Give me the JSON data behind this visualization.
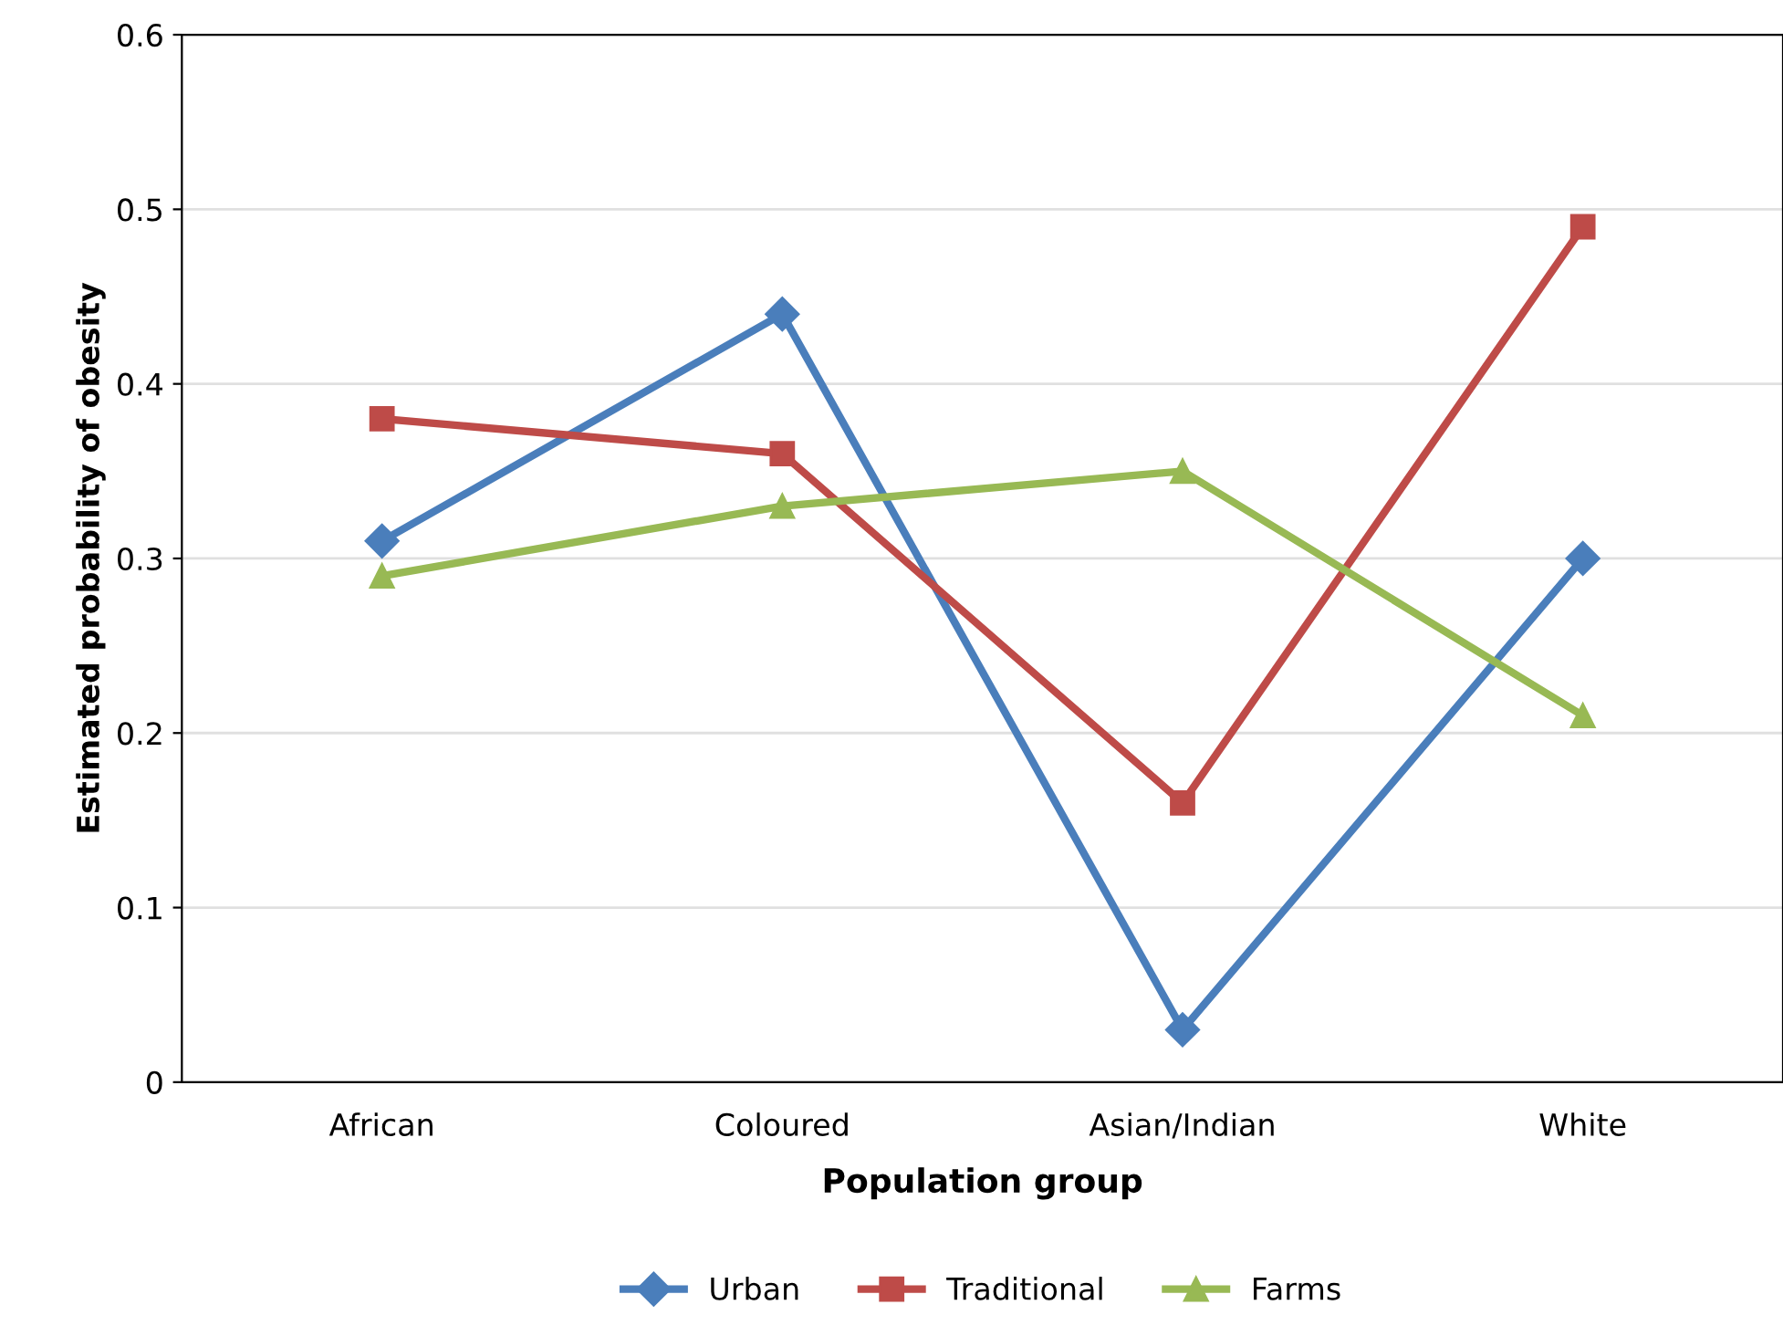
{
  "chart_data": {
    "type": "line",
    "xlabel": "Population group",
    "ylabel": "Estimated probability of obesity",
    "categories": [
      "African",
      "Coloured",
      "Asian/Indian",
      "White"
    ],
    "series": [
      {
        "name": "Urban",
        "color": "#4a7ebb",
        "marker": "diamond",
        "values": [
          0.31,
          0.44,
          0.03,
          0.3
        ]
      },
      {
        "name": "Traditional",
        "color": "#be4b48",
        "marker": "square",
        "values": [
          0.38,
          0.36,
          0.16,
          0.49
        ]
      },
      {
        "name": "Farms",
        "color": "#98b954",
        "marker": "triangle",
        "values": [
          0.29,
          0.33,
          0.35,
          0.21
        ]
      }
    ],
    "ylim": [
      0,
      0.6
    ],
    "yticks": [
      0,
      0.1,
      0.2,
      0.3,
      0.4,
      0.5,
      0.6
    ],
    "grid": "y",
    "legend": "bottom",
    "line_style": "solid"
  }
}
